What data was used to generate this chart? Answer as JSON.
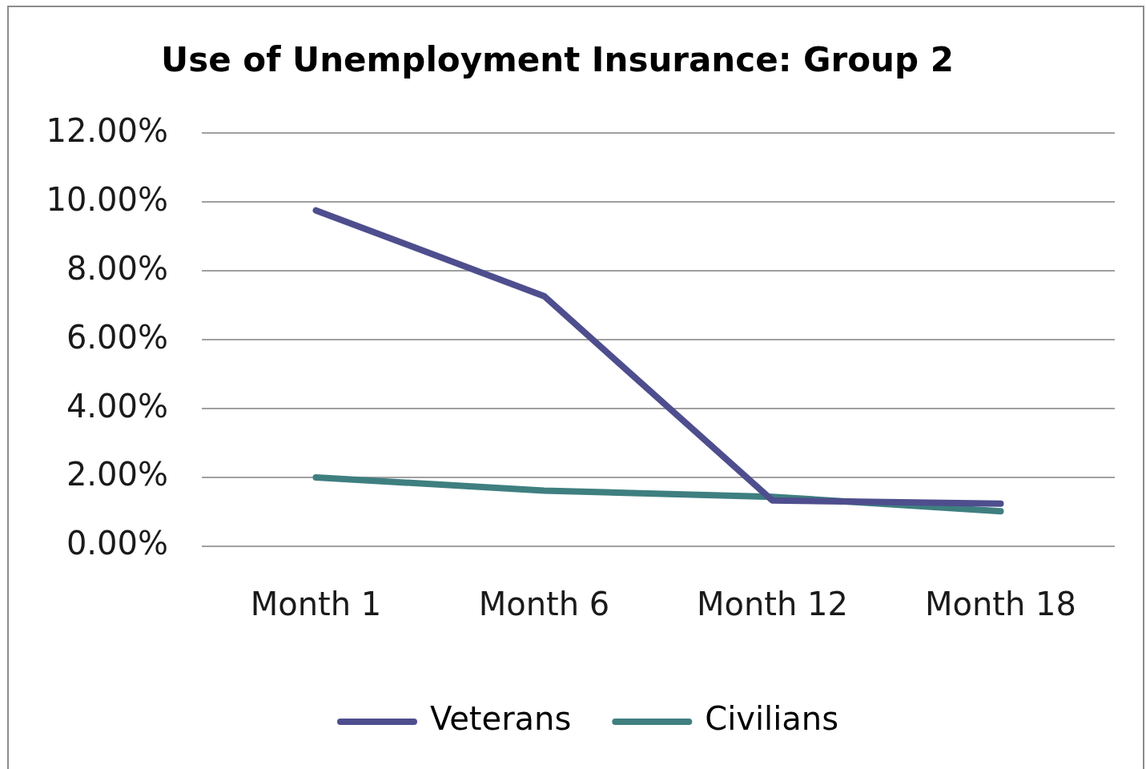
{
  "chart_data": {
    "type": "line",
    "title": "Use of Unemployment Insurance: Group 2",
    "categories": [
      "Month 1",
      "Month 6",
      "Month 12",
      "Month 18"
    ],
    "series": [
      {
        "name": "Veterans",
        "color": "#4e4e8e",
        "values": [
          9.76,
          7.27,
          1.33,
          1.24
        ]
      },
      {
        "name": "Civilians",
        "color": "#3f7f80",
        "values": [
          2.0,
          1.62,
          1.44,
          1.02
        ]
      }
    ],
    "ylim": [
      0,
      12
    ],
    "yticks": [
      {
        "value": 0,
        "label": "0.00%"
      },
      {
        "value": 2,
        "label": "2.00%"
      },
      {
        "value": 4,
        "label": "4.00%"
      },
      {
        "value": 6,
        "label": "6.00%"
      },
      {
        "value": 8,
        "label": "8.00%"
      },
      {
        "value": 10,
        "label": "10.00%"
      },
      {
        "value": 12,
        "label": "12.00%"
      }
    ],
    "grid": "y",
    "legend": "bottom"
  }
}
